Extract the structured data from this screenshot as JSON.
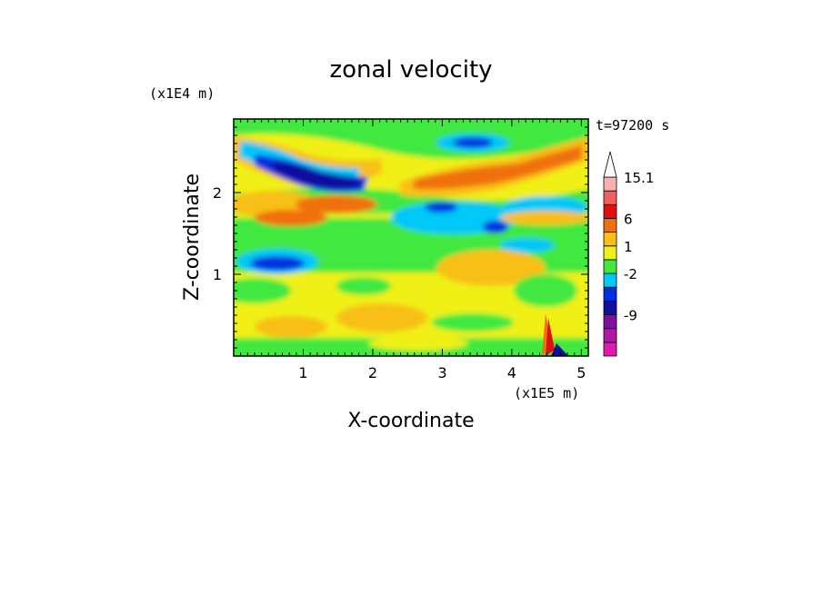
{
  "chart_data": {
    "type": "heatmap",
    "title": "zonal velocity",
    "time_label": "t=97200 s",
    "xlabel": "X-coordinate",
    "ylabel": "Z-coordinate",
    "x_unit": "(x1E5 m)",
    "y_unit": "(x1E4 m)",
    "x_ticks": [
      "1",
      "2",
      "3",
      "4",
      "5"
    ],
    "y_ticks": [
      "1",
      "2"
    ],
    "xlim": [
      0,
      5.1
    ],
    "ylim": [
      0,
      2.9
    ],
    "colorbar": {
      "levels": [
        {
          "color": "#e01ab0",
          "label": ""
        },
        {
          "color": "#b018a8",
          "label": ""
        },
        {
          "color": "#7c10a0",
          "label": "-9"
        },
        {
          "color": "#1010a0",
          "label": ""
        },
        {
          "color": "#0030e0",
          "label": ""
        },
        {
          "color": "#00c8f8",
          "label": "-2"
        },
        {
          "color": "#40e840",
          "label": ""
        },
        {
          "color": "#f0f018",
          "label": "1"
        },
        {
          "color": "#f8c018",
          "label": ""
        },
        {
          "color": "#f07010",
          "label": "6"
        },
        {
          "color": "#e01010",
          "label": ""
        },
        {
          "color": "#f06060",
          "label": ""
        },
        {
          "color": "#f8b0b0",
          "label": "15.1"
        }
      ]
    },
    "field_bands": [
      {
        "z": [
          2.5,
          2.75
        ],
        "dominant": "#f8c018",
        "note": "upper orange band"
      },
      {
        "z": [
          2.1,
          2.4
        ],
        "dominant": "#1010a0",
        "x": [
          0.4,
          1.9
        ]
      },
      {
        "z": [
          1.9,
          2.1
        ],
        "dominant": "#f07010",
        "x": [
          2.4,
          4.5
        ]
      },
      {
        "z": [
          1.0,
          1.2
        ],
        "dominant": "#0030e0",
        "x": [
          0.3,
          1.0
        ]
      },
      {
        "z": [
          0,
          0.9
        ],
        "dominant": "#f0f018"
      }
    ]
  }
}
